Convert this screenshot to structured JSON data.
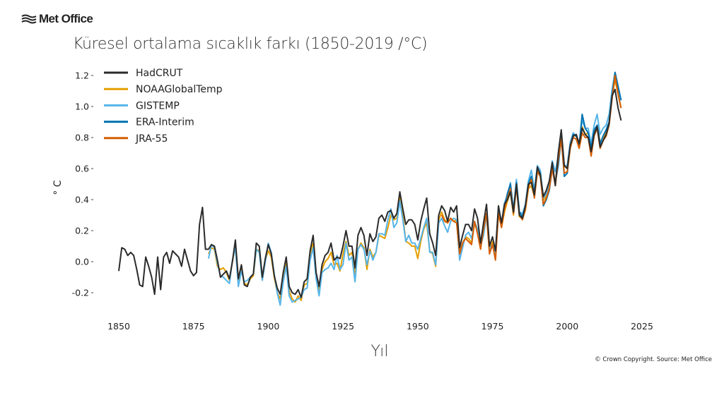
{
  "header": {
    "logo": "Met Office",
    "title": "Küresel ortalama sıcaklık farkı (1850-2019 /°C)"
  },
  "footer": {
    "copyright": "© Crown Copyright. Source: Met Office"
  },
  "chart_data": {
    "type": "line",
    "title": "Küresel ortalama sıcaklık farkı (1850-2019 /°C)",
    "xlabel": "Yıl",
    "ylabel": "° C",
    "xlim": [
      1840,
      2030
    ],
    "ylim": [
      -0.35,
      1.25
    ],
    "xticks": [
      1850,
      1875,
      1900,
      1925,
      1950,
      1975,
      2000,
      2025
    ],
    "xtick_labels": [
      "1850",
      "1875",
      "1900",
      "1925",
      "1950",
      "1975",
      "2000",
      "2025"
    ],
    "yticks": [
      -0.2,
      0.0,
      0.2,
      0.4,
      0.6,
      0.8,
      1.0,
      1.2
    ],
    "ytick_labels": [
      "-0.2",
      "0.0",
      "0.2",
      "0.4",
      "0.6",
      "0.8",
      "1.0",
      "1.2"
    ],
    "grid": false,
    "legend_placement": "top-left",
    "series": [
      {
        "name": "NOAAGlobalTemp",
        "color": "#e69f00",
        "start_year": 1880,
        "values": [
          0.05,
          0.09,
          0.08,
          -0.03,
          -0.05,
          -0.04,
          -0.07,
          -0.12,
          0.0,
          0.1,
          -0.12,
          -0.04,
          -0.14,
          -0.15,
          -0.11,
          -0.09,
          0.08,
          0.07,
          -0.12,
          0.01,
          0.07,
          0.03,
          -0.1,
          -0.2,
          -0.24,
          -0.09,
          0.0,
          -0.19,
          -0.24,
          -0.26,
          -0.22,
          -0.25,
          -0.15,
          -0.14,
          0.05,
          0.12,
          -0.08,
          -0.18,
          -0.05,
          0.0,
          0.02,
          0.06,
          -0.02,
          -0.01,
          -0.06,
          0.05,
          0.13,
          0.04,
          0.06,
          -0.08,
          0.08,
          0.12,
          0.09,
          -0.05,
          0.08,
          0.03,
          0.06,
          0.17,
          0.16,
          0.15,
          0.22,
          0.3,
          0.27,
          0.28,
          0.43,
          0.3,
          0.13,
          0.12,
          0.1,
          0.1,
          0.02,
          0.13,
          0.21,
          0.25,
          0.07,
          0.05,
          -0.03,
          0.27,
          0.32,
          0.27,
          0.25,
          0.28,
          0.26,
          0.27,
          0.06,
          0.12,
          0.16,
          0.15,
          0.12,
          0.25,
          0.19,
          0.09,
          0.2,
          0.3,
          0.07,
          0.13,
          0.05,
          0.33,
          0.22,
          0.32,
          0.39,
          0.45,
          0.3,
          0.49,
          0.29,
          0.28,
          0.33,
          0.47,
          0.49,
          0.42,
          0.58,
          0.55,
          0.4,
          0.42,
          0.49,
          0.6,
          0.5,
          0.69,
          0.82,
          0.61,
          0.61,
          0.75,
          0.81,
          0.81,
          0.77,
          0.87,
          0.82,
          0.83,
          0.74,
          0.84,
          0.88,
          0.77,
          0.8,
          0.84,
          0.9,
          1.07,
          1.17,
          1.08,
          0.99
        ]
      },
      {
        "name": "GISTEMP",
        "color": "#56b4e9",
        "start_year": 1880,
        "values": [
          0.02,
          0.11,
          0.09,
          -0.01,
          -0.09,
          -0.1,
          -0.12,
          -0.14,
          0.01,
          0.09,
          -0.16,
          -0.06,
          -0.13,
          -0.12,
          -0.1,
          -0.08,
          0.08,
          0.06,
          -0.12,
          0.0,
          0.12,
          0.06,
          -0.08,
          -0.2,
          -0.28,
          -0.13,
          -0.03,
          -0.22,
          -0.26,
          -0.25,
          -0.24,
          -0.23,
          -0.18,
          -0.17,
          0.01,
          0.09,
          -0.11,
          -0.22,
          -0.07,
          -0.05,
          -0.04,
          -0.01,
          -0.05,
          0.04,
          -0.05,
          -0.02,
          0.12,
          0.01,
          0.03,
          -0.13,
          0.08,
          0.11,
          0.08,
          -0.02,
          0.07,
          0.01,
          0.06,
          0.18,
          0.18,
          0.17,
          0.27,
          0.34,
          0.22,
          0.25,
          0.39,
          0.27,
          0.13,
          0.17,
          0.12,
          0.12,
          0.08,
          0.15,
          0.22,
          0.28,
          0.06,
          0.06,
          -0.02,
          0.25,
          0.28,
          0.23,
          0.19,
          0.26,
          0.28,
          0.27,
          0.01,
          0.09,
          0.17,
          0.19,
          0.15,
          0.26,
          0.21,
          0.1,
          0.17,
          0.3,
          0.08,
          0.11,
          0.05,
          0.34,
          0.24,
          0.38,
          0.42,
          0.51,
          0.33,
          0.53,
          0.32,
          0.31,
          0.37,
          0.52,
          0.59,
          0.46,
          0.62,
          0.59,
          0.41,
          0.44,
          0.51,
          0.65,
          0.58,
          0.68,
          0.83,
          0.62,
          0.62,
          0.77,
          0.83,
          0.81,
          0.76,
          0.91,
          0.86,
          0.86,
          0.76,
          0.88,
          0.95,
          0.82,
          0.86,
          0.88,
          0.95,
          1.11,
          1.22,
          1.13,
          1.04
        ]
      },
      {
        "name": "ERA-Interim",
        "color": "#0072b2",
        "start_year": 1979,
        "values": [
          0.36,
          0.44,
          0.5,
          0.33,
          0.51,
          0.32,
          0.29,
          0.36,
          0.5,
          0.55,
          0.44,
          0.6,
          0.57,
          0.36,
          0.4,
          0.46,
          0.6,
          0.51,
          0.62,
          0.8,
          0.55,
          0.57,
          0.74,
          0.82,
          0.81,
          0.75,
          0.95,
          0.86,
          0.83,
          0.73,
          0.85,
          0.88,
          0.76,
          0.81,
          0.85,
          0.9,
          1.07,
          1.22,
          1.13,
          1.04
        ]
      },
      {
        "name": "JRA-55",
        "color": "#d55e00",
        "start_year": 1958,
        "values": [
          0.3,
          0.26,
          0.25,
          0.28,
          0.26,
          0.25,
          0.05,
          0.12,
          0.15,
          0.13,
          0.11,
          0.26,
          0.18,
          0.08,
          0.21,
          0.31,
          0.05,
          0.11,
          0.01,
          0.31,
          0.22,
          0.34,
          0.41,
          0.47,
          0.31,
          0.48,
          0.3,
          0.27,
          0.34,
          0.48,
          0.53,
          0.41,
          0.58,
          0.55,
          0.37,
          0.41,
          0.47,
          0.6,
          0.49,
          0.66,
          0.79,
          0.57,
          0.58,
          0.73,
          0.8,
          0.79,
          0.73,
          0.83,
          0.8,
          0.8,
          0.68,
          0.81,
          0.86,
          0.73,
          0.78,
          0.81,
          0.88,
          1.05,
          1.2,
          1.08,
          0.99
        ]
      },
      {
        "name": "HadCRUT",
        "color": "#2b2b2b",
        "start_year": 1850,
        "values": [
          -0.06,
          0.09,
          0.08,
          0.04,
          0.06,
          0.04,
          -0.05,
          -0.15,
          -0.16,
          0.03,
          -0.03,
          -0.1,
          -0.21,
          0.03,
          -0.18,
          0.03,
          0.06,
          -0.01,
          0.07,
          0.05,
          0.03,
          -0.03,
          0.08,
          0.01,
          -0.06,
          -0.09,
          -0.07,
          0.24,
          0.35,
          0.08,
          0.08,
          0.11,
          0.1,
          0.01,
          -0.1,
          -0.08,
          -0.06,
          -0.11,
          0.0,
          0.14,
          -0.11,
          -0.02,
          -0.15,
          -0.16,
          -0.1,
          -0.08,
          0.12,
          0.1,
          -0.1,
          0.02,
          0.11,
          0.05,
          -0.09,
          -0.17,
          -0.21,
          -0.07,
          0.03,
          -0.16,
          -0.2,
          -0.21,
          -0.18,
          -0.23,
          -0.13,
          -0.11,
          0.07,
          0.17,
          -0.07,
          -0.16,
          -0.02,
          0.04,
          0.06,
          0.12,
          0.01,
          0.03,
          0.02,
          0.1,
          0.2,
          0.1,
          0.1,
          -0.04,
          0.17,
          0.22,
          0.17,
          0.04,
          0.18,
          0.13,
          0.16,
          0.28,
          0.3,
          0.26,
          0.32,
          0.33,
          0.28,
          0.31,
          0.45,
          0.34,
          0.24,
          0.27,
          0.27,
          0.24,
          0.14,
          0.26,
          0.34,
          0.41,
          0.18,
          0.12,
          0.04,
          0.3,
          0.36,
          0.33,
          0.26,
          0.35,
          0.32,
          0.36,
          0.09,
          0.17,
          0.24,
          0.24,
          0.2,
          0.34,
          0.28,
          0.12,
          0.25,
          0.37,
          0.1,
          0.16,
          0.07,
          0.36,
          0.25,
          0.37,
          0.4,
          0.45,
          0.32,
          0.5,
          0.3,
          0.28,
          0.36,
          0.5,
          0.51,
          0.43,
          0.61,
          0.56,
          0.42,
          0.46,
          0.52,
          0.64,
          0.49,
          0.7,
          0.85,
          0.62,
          0.6,
          0.75,
          0.81,
          0.82,
          0.76,
          0.86,
          0.82,
          0.8,
          0.71,
          0.82,
          0.87,
          0.74,
          0.78,
          0.82,
          0.89,
          1.07,
          1.11,
          0.99,
          0.91
        ]
      }
    ],
    "legend": [
      {
        "label": "HadCRUT",
        "color": "#2b2b2b"
      },
      {
        "label": "NOAAGlobalTemp",
        "color": "#e69f00"
      },
      {
        "label": "GISTEMP",
        "color": "#56b4e9"
      },
      {
        "label": "ERA-Interim",
        "color": "#0072b2"
      },
      {
        "label": "JRA-55",
        "color": "#d55e00"
      }
    ]
  }
}
